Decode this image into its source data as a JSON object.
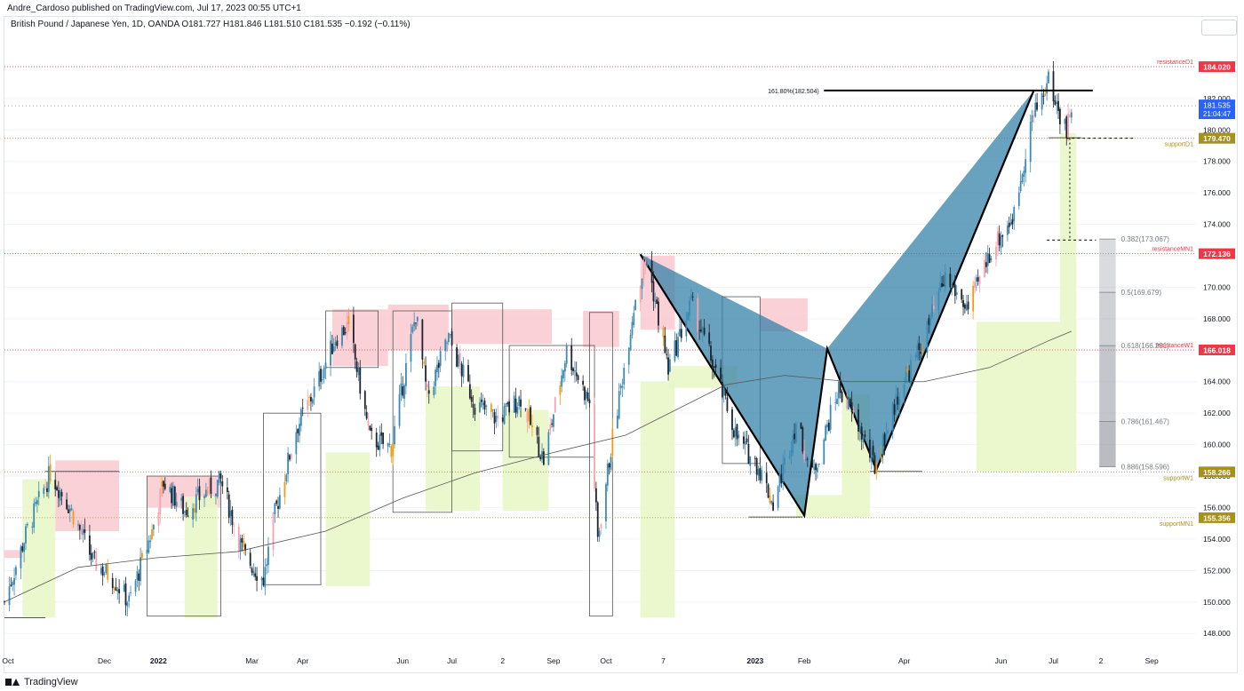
{
  "header": {
    "publisher_line": "Andre_Cardoso published on TradingView.com, Jul 17, 2023 00:55 UTC+1",
    "symbol_line": "British Pound / Japanese Yen, 1D, OANDA  O181.727  H181.846  L181.510  C181.535  −0.192 (−0.11%)"
  },
  "footer": {
    "brand": "TradingView"
  },
  "colors": {
    "bull_candle": "#3b8bb5",
    "bear_candle": "#1f2430",
    "orange_candle": "#f39c12",
    "red_zone": "#f9c9cf",
    "green_zone": "#e9f7c8",
    "harmonic_fill": "#2f7ea6",
    "resistance": "#f23645",
    "support": "#a89020",
    "current_price": "#2962ff",
    "fib_gray": "#787b86"
  },
  "chart_data": {
    "type": "candlestick",
    "title": "British Pound / Japanese Yen, 1D, OANDA",
    "ylim": [
      146.6,
      186.0
    ],
    "y_ticks": [
      148,
      150,
      152,
      154,
      156,
      158,
      160,
      162,
      164,
      166,
      168,
      170,
      172,
      174,
      176,
      178,
      180,
      182
    ],
    "y_tick_labels": [
      "148.000",
      "150.000",
      "152.000",
      "154.000",
      "156.000",
      "158.000",
      "160.000",
      "162.000",
      "164.000",
      "166.000",
      "168.000",
      "170.000",
      "172.000",
      "174.000",
      "176.000",
      "178.000",
      "180.000",
      "182.000"
    ],
    "x_labels": [
      "Oct",
      "Dec",
      "2022",
      "Mar",
      "Apr",
      "Jun",
      "Jul",
      "2",
      "Sep",
      "Oct",
      "7",
      "2023",
      "Feb",
      "Apr",
      "Jun",
      "Jul",
      "2",
      "Sep"
    ],
    "x_label_dates": [
      "2021-10-01",
      "2021-12-01",
      "2022-01-03",
      "2022-03-01",
      "2022-04-01",
      "2022-06-01",
      "2022-07-01",
      "2022-08-01",
      "2022-09-01",
      "2022-10-03",
      "2022-11-07",
      "2023-01-02",
      "2023-02-01",
      "2023-04-03",
      "2023-06-01",
      "2023-07-03",
      "2023-08-01",
      "2023-09-01"
    ],
    "x_range": [
      "2021-10-01",
      "2023-09-28"
    ],
    "last_bar": {
      "open": 181.727,
      "high": 181.846,
      "low": 181.51,
      "close": 181.535,
      "change": -0.192,
      "change_pct": -0.11,
      "countdown": "21:04:47",
      "label": "181.535"
    },
    "price_path": [
      [
        "2021-10-01",
        150.0
      ],
      [
        "2021-10-15",
        154.6
      ],
      [
        "2021-10-29",
        158.2
      ],
      [
        "2021-11-10",
        156.0
      ],
      [
        "2021-11-24",
        152.6
      ],
      [
        "2021-12-07",
        151.4
      ],
      [
        "2021-12-16",
        150.0
      ],
      [
        "2021-12-30",
        154.5
      ],
      [
        "2022-01-06",
        157.6
      ],
      [
        "2022-01-19",
        155.8
      ],
      [
        "2022-02-01",
        157.0
      ],
      [
        "2022-02-10",
        157.7
      ],
      [
        "2022-02-24",
        153.0
      ],
      [
        "2022-03-08",
        151.4
      ],
      [
        "2022-03-15",
        155.6
      ],
      [
        "2022-03-28",
        161.0
      ],
      [
        "2022-04-08",
        163.4
      ],
      [
        "2022-04-21",
        166.8
      ],
      [
        "2022-04-29",
        167.6
      ],
      [
        "2022-05-12",
        160.4
      ],
      [
        "2022-05-25",
        159.8
      ],
      [
        "2022-06-09",
        168.3
      ],
      [
        "2022-06-16",
        163.0
      ],
      [
        "2022-06-29",
        166.8
      ],
      [
        "2022-07-15",
        162.6
      ],
      [
        "2022-07-29",
        161.6
      ],
      [
        "2022-08-12",
        163.0
      ],
      [
        "2022-08-26",
        159.0
      ],
      [
        "2022-09-09",
        166.0
      ],
      [
        "2022-09-23",
        162.6
      ],
      [
        "2022-09-28",
        154.0
      ],
      [
        "2022-10-07",
        160.4
      ],
      [
        "2022-10-21",
        169.4
      ],
      [
        "2022-10-28",
        171.8
      ],
      [
        "2022-11-10",
        164.8
      ],
      [
        "2022-11-24",
        169.0
      ],
      [
        "2022-12-05",
        165.8
      ],
      [
        "2022-12-22",
        160.4
      ],
      [
        "2023-01-04",
        158.6
      ],
      [
        "2023-01-13",
        156.2
      ],
      [
        "2023-01-27",
        161.4
      ],
      [
        "2023-02-06",
        158.0
      ],
      [
        "2023-02-22",
        163.6
      ],
      [
        "2023-03-06",
        161.2
      ],
      [
        "2023-03-16",
        158.6
      ],
      [
        "2023-03-31",
        163.4
      ],
      [
        "2023-04-14",
        166.4
      ],
      [
        "2023-04-28",
        170.6
      ],
      [
        "2023-05-12",
        168.6
      ],
      [
        "2023-05-26",
        172.4
      ],
      [
        "2023-06-09",
        174.6
      ],
      [
        "2023-06-19",
        180.4
      ],
      [
        "2023-06-30",
        183.2
      ],
      [
        "2023-07-06",
        181.2
      ],
      [
        "2023-07-11",
        180.0
      ],
      [
        "2023-07-14",
        181.5
      ]
    ],
    "moving_average": [
      [
        "2021-10-01",
        150.0
      ],
      [
        "2021-11-15",
        152.2
      ],
      [
        "2022-01-01",
        152.8
      ],
      [
        "2022-02-20",
        153.2
      ],
      [
        "2022-04-15",
        154.5
      ],
      [
        "2022-06-01",
        156.6
      ],
      [
        "2022-07-15",
        158.2
      ],
      [
        "2022-09-01",
        159.5
      ],
      [
        "2022-10-15",
        160.6
      ],
      [
        "2022-12-15",
        163.8
      ],
      [
        "2023-01-20",
        164.4
      ],
      [
        "2023-02-28",
        164.0
      ],
      [
        "2023-04-15",
        164.0
      ],
      [
        "2023-05-25",
        164.9
      ],
      [
        "2023-06-30",
        166.6
      ],
      [
        "2023-07-14",
        167.2
      ]
    ],
    "levels": [
      {
        "name": "resistanceD1",
        "price": 184.02,
        "label": "184.020",
        "kind": "resistance"
      },
      {
        "name": "supportD1",
        "price": 179.47,
        "label": "179.470",
        "kind": "support"
      },
      {
        "name": "resistanceMN1",
        "price": 172.136,
        "label": "172.136",
        "kind": "resistance"
      },
      {
        "name": "resistanceW1",
        "price": 166.018,
        "label": "166.018",
        "kind": "resistance"
      },
      {
        "name": "supportW1",
        "price": 158.266,
        "label": "158.266",
        "kind": "support"
      },
      {
        "name": "supportMN1",
        "price": 155.356,
        "label": "155.356",
        "kind": "support"
      }
    ],
    "harmonic_pattern": {
      "points": [
        [
          "2022-10-24",
          172.1
        ],
        [
          "2023-02-01",
          155.5
        ],
        [
          "2023-02-15",
          166.1
        ],
        [
          "2023-03-17",
          158.4
        ],
        [
          "2023-06-21",
          182.5
        ]
      ],
      "fib_target_label": "161.80%(182.504)",
      "fib_target_price": 182.504
    },
    "fib_retracement": [
      {
        "label": "0.382(173.067)",
        "price": 173.067
      },
      {
        "label": "0.5(169.679)",
        "price": 169.679
      },
      {
        "label": "0.618(166.291)",
        "price": 166.291
      },
      {
        "label": "0.786(161.467)",
        "price": 161.467
      },
      {
        "label": "0.886(158.596)",
        "price": 158.596
      }
    ],
    "red_zones": [
      [
        "2021-10-01",
        "2021-10-12",
        152.8,
        153.3
      ],
      [
        "2021-11-01",
        "2021-12-10",
        154.5,
        159.0
      ],
      [
        "2021-12-27",
        "2022-02-10",
        156.0,
        158.0
      ],
      [
        "2022-04-19",
        "2022-05-23",
        165.0,
        168.6
      ],
      [
        "2022-05-23",
        "2022-06-29",
        166.0,
        168.9
      ],
      [
        "2022-07-01",
        "2022-08-31",
        166.4,
        168.6
      ],
      [
        "2022-09-19",
        "2022-10-11",
        166.2,
        168.5
      ],
      [
        "2022-10-24",
        "2022-11-14",
        167.3,
        172.0
      ],
      [
        "2023-01-05",
        "2023-02-03",
        167.2,
        169.3
      ]
    ],
    "green_zones": [
      [
        "2021-10-12",
        "2021-11-01",
        149.0,
        157.8
      ],
      [
        "2022-01-19",
        "2022-02-08",
        149.0,
        156.7
      ],
      [
        "2022-04-15",
        "2022-05-12",
        151.0,
        159.5
      ],
      [
        "2022-06-15",
        "2022-07-18",
        155.8,
        163.7
      ],
      [
        "2022-08-01",
        "2022-08-29",
        155.8,
        162.2
      ],
      [
        "2022-10-24",
        "2022-11-14",
        149.0,
        164.0
      ],
      [
        "2022-11-10",
        "2022-12-22",
        163.6,
        165.0
      ],
      [
        "2023-01-27",
        "2023-02-24",
        155.4,
        156.8
      ],
      [
        "2023-02-24",
        "2023-03-13",
        155.4,
        163.2
      ],
      [
        "2023-05-17",
        "2023-07-07",
        158.3,
        167.8
      ],
      [
        "2023-07-07",
        "2023-07-17",
        158.3,
        179.8
      ]
    ],
    "boxes": [
      [
        "2021-10-01",
        "2021-10-26",
        149.0,
        149.0
      ],
      [
        "2021-10-26",
        "2021-12-10",
        158.3,
        158.3
      ],
      [
        "2021-12-27",
        "2022-02-10",
        149.1,
        158.0
      ],
      [
        "2022-03-08",
        "2022-04-12",
        151.1,
        162.0
      ],
      [
        "2022-04-15",
        "2022-05-17",
        164.9,
        168.5
      ],
      [
        "2022-05-26",
        "2022-07-01",
        155.7,
        168.5
      ],
      [
        "2022-07-01",
        "2022-08-01",
        159.6,
        169.0
      ],
      [
        "2022-08-05",
        "2022-09-26",
        159.2,
        166.3
      ],
      [
        "2022-09-23",
        "2022-10-07",
        149.1,
        168.4
      ],
      [
        "2022-12-13",
        "2023-01-05",
        158.8,
        169.4
      ],
      [
        "2022-12-29",
        "2023-01-31",
        155.4,
        155.4
      ],
      [
        "2023-03-13",
        "2023-04-14",
        158.3,
        158.3
      ],
      [
        "2023-06-30",
        "2023-07-20",
        179.5,
        179.5
      ]
    ]
  }
}
